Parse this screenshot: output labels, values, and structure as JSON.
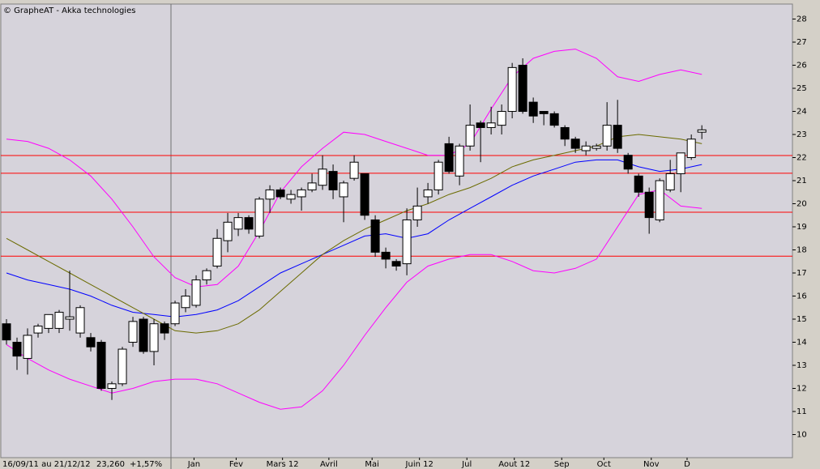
{
  "chart_data": {
    "type": "candlestick",
    "title": "© GrapheAT - Akka technologies",
    "period": "16/09/11 au 21/12/12",
    "last": "23,260",
    "change": "+1,57%",
    "open": [
      14.8,
      14.0,
      13.3,
      14.4,
      14.6,
      14.6,
      15.0,
      14.4,
      14.2,
      14.0,
      12.0,
      12.2,
      14.0,
      15.0,
      13.6,
      14.8,
      14.8,
      15.5,
      15.6,
      16.7,
      17.3,
      18.4,
      18.9,
      19.4,
      18.6,
      20.2,
      20.6,
      20.2,
      20.3,
      20.6,
      20.8,
      21.4,
      20.3,
      21.1,
      21.3,
      19.3,
      17.9,
      17.5,
      17.4,
      19.3,
      20.3,
      20.6,
      22.6,
      21.2,
      22.5,
      23.5,
      23.3,
      23.4,
      24.0,
      26.0,
      24.4,
      24.0,
      23.9,
      23.3,
      22.8,
      22.3,
      22.4,
      22.5,
      23.4,
      22.1,
      21.2,
      20.5,
      19.3,
      20.6,
      21.3,
      22.0,
      23.1
    ],
    "high": [
      15.0,
      14.2,
      14.6,
      14.8,
      15.2,
      15.4,
      17.1,
      15.6,
      14.4,
      14.1,
      12.3,
      13.8,
      15.1,
      15.1,
      15.0,
      14.9,
      15.8,
      16.3,
      16.9,
      17.2,
      18.9,
      19.6,
      19.6,
      19.5,
      20.3,
      20.8,
      20.7,
      20.6,
      20.7,
      21.3,
      22.1,
      21.7,
      21.0,
      22.1,
      21.3,
      19.5,
      18.1,
      17.6,
      19.8,
      20.7,
      20.9,
      21.9,
      22.9,
      22.6,
      24.3,
      23.6,
      24.2,
      24.3,
      26.1,
      26.3,
      24.6,
      24.0,
      24.0,
      23.4,
      22.9,
      22.7,
      22.6,
      24.4,
      24.5,
      22.2,
      21.3,
      20.7,
      21.1,
      21.9,
      22.2,
      23.0,
      23.4
    ],
    "low": [
      13.9,
      12.8,
      12.6,
      14.2,
      14.4,
      14.4,
      14.5,
      14.2,
      13.6,
      11.9,
      11.5,
      12.1,
      13.8,
      13.5,
      13.0,
      14.1,
      14.7,
      15.3,
      15.5,
      16.5,
      17.2,
      17.9,
      18.6,
      18.7,
      18.5,
      19.6,
      20.2,
      20.0,
      19.7,
      20.5,
      20.6,
      20.2,
      19.2,
      21.0,
      19.3,
      17.7,
      17.2,
      17.1,
      16.9,
      19.0,
      20.0,
      20.4,
      21.3,
      20.8,
      22.3,
      21.8,
      23.0,
      23.0,
      23.7,
      23.9,
      23.5,
      23.4,
      23.3,
      22.5,
      22.2,
      22.1,
      22.3,
      22.3,
      22.2,
      21.3,
      20.3,
      18.7,
      19.2,
      20.5,
      20.5,
      21.9,
      22.8
    ],
    "close": [
      14.1,
      13.4,
      14.3,
      14.7,
      15.2,
      15.3,
      15.1,
      15.5,
      13.8,
      12.0,
      12.2,
      13.7,
      14.9,
      13.6,
      14.8,
      14.4,
      15.7,
      16.0,
      16.7,
      17.1,
      18.5,
      19.2,
      19.4,
      18.9,
      20.2,
      20.6,
      20.3,
      20.4,
      20.6,
      20.9,
      21.5,
      20.6,
      20.9,
      21.8,
      19.5,
      17.9,
      17.6,
      17.3,
      19.3,
      19.9,
      20.6,
      21.8,
      21.4,
      22.5,
      23.4,
      23.3,
      23.5,
      24.0,
      25.9,
      24.0,
      23.8,
      23.9,
      23.4,
      22.8,
      22.4,
      22.5,
      22.5,
      23.4,
      22.4,
      21.5,
      20.5,
      19.4,
      21.0,
      21.3,
      22.2,
      22.8,
      23.2
    ],
    "up_color": "#ffffff",
    "down_color": "#000000",
    "lines": [
      {
        "color": "#ff00ff",
        "x": [
          0,
          2,
          4,
          6,
          8,
          10,
          12,
          14,
          16,
          18,
          20,
          22,
          24,
          26,
          28,
          30,
          32,
          34,
          36,
          38,
          40,
          42,
          44,
          46,
          48,
          50,
          52,
          54,
          56,
          58,
          60,
          62,
          64,
          66
        ],
        "values": [
          22.8,
          22.7,
          22.4,
          21.9,
          21.2,
          20.2,
          19.0,
          17.7,
          16.8,
          16.4,
          16.5,
          17.3,
          18.8,
          20.5,
          21.6,
          22.4,
          23.1,
          23.0,
          22.7,
          22.4,
          22.1,
          22.1,
          22.6,
          24.1,
          25.5,
          26.3,
          26.6,
          26.7,
          26.3,
          25.5,
          25.3,
          25.6,
          25.8,
          25.6
        ]
      },
      {
        "color": "#ff00ff",
        "x": [
          0,
          2,
          4,
          6,
          8,
          10,
          12,
          14,
          16,
          18,
          20,
          22,
          24,
          26,
          28,
          30,
          32,
          34,
          36,
          38,
          40,
          42,
          44,
          46,
          48,
          50,
          52,
          54,
          56,
          58,
          60,
          62,
          64,
          66
        ],
        "values": [
          13.9,
          13.3,
          12.8,
          12.4,
          12.1,
          11.8,
          12.0,
          12.3,
          12.4,
          12.4,
          12.2,
          11.8,
          11.4,
          11.1,
          11.2,
          11.9,
          13.0,
          14.3,
          15.5,
          16.6,
          17.3,
          17.6,
          17.8,
          17.8,
          17.5,
          17.1,
          17.0,
          17.2,
          17.6,
          19.0,
          20.4,
          20.6,
          19.9,
          19.8
        ]
      },
      {
        "color": "#0000ff",
        "x": [
          0,
          2,
          4,
          6,
          8,
          10,
          12,
          14,
          16,
          18,
          20,
          22,
          24,
          26,
          28,
          30,
          32,
          34,
          36,
          38,
          40,
          42,
          44,
          46,
          48,
          50,
          52,
          54,
          56,
          58,
          60,
          62,
          64,
          66
        ],
        "values": [
          17.0,
          16.7,
          16.5,
          16.3,
          16.0,
          15.6,
          15.3,
          15.2,
          15.1,
          15.2,
          15.4,
          15.8,
          16.4,
          17.0,
          17.4,
          17.8,
          18.2,
          18.6,
          18.7,
          18.5,
          18.7,
          19.3,
          19.8,
          20.3,
          20.8,
          21.2,
          21.5,
          21.8,
          21.9,
          21.9,
          21.6,
          21.4,
          21.5,
          21.7
        ]
      },
      {
        "color": "#6b6b00",
        "x": [
          0,
          2,
          4,
          6,
          8,
          10,
          12,
          14,
          16,
          18,
          20,
          22,
          24,
          26,
          28,
          30,
          32,
          34,
          36,
          38,
          40,
          42,
          44,
          46,
          48,
          50,
          52,
          54,
          56,
          58,
          60,
          62,
          64,
          66
        ],
        "values": [
          18.5,
          18.0,
          17.5,
          17.0,
          16.5,
          16.0,
          15.5,
          15.0,
          14.5,
          14.4,
          14.5,
          14.8,
          15.4,
          16.2,
          17.0,
          17.8,
          18.4,
          18.9,
          19.3,
          19.7,
          20.0,
          20.4,
          20.7,
          21.1,
          21.6,
          21.9,
          22.1,
          22.3,
          22.5,
          22.9,
          23.0,
          22.9,
          22.8,
          22.6
        ]
      }
    ],
    "hlines": [
      22.09,
      21.32,
      19.63,
      17.73
    ],
    "hline_color": "#ff0000",
    "xlim": [
      -0.615,
      74.6
    ],
    "xticks": [
      {
        "value": 17.8,
        "label": "Jan"
      },
      {
        "value": 21.8,
        "label": "Fev"
      },
      {
        "value": 26.2,
        "label": "Mars 12"
      },
      {
        "value": 30.6,
        "label": "Avril"
      },
      {
        "value": 34.7,
        "label": "Mai"
      },
      {
        "value": 39.2,
        "label": "Juin 12"
      },
      {
        "value": 43.7,
        "label": "Jul"
      },
      {
        "value": 48.2,
        "label": "Aout 12"
      },
      {
        "value": 52.7,
        "label": "Sep"
      },
      {
        "value": 56.7,
        "label": "Oct"
      },
      {
        "value": 61.2,
        "label": "Nov"
      },
      {
        "value": 64.6,
        "label": "D"
      }
    ],
    "ylim": [
      9,
      28.65
    ],
    "yticks": [
      10,
      11,
      12,
      13,
      14,
      15,
      16,
      17,
      18,
      19,
      20,
      21,
      22,
      23,
      24,
      25,
      26,
      27,
      28
    ]
  }
}
